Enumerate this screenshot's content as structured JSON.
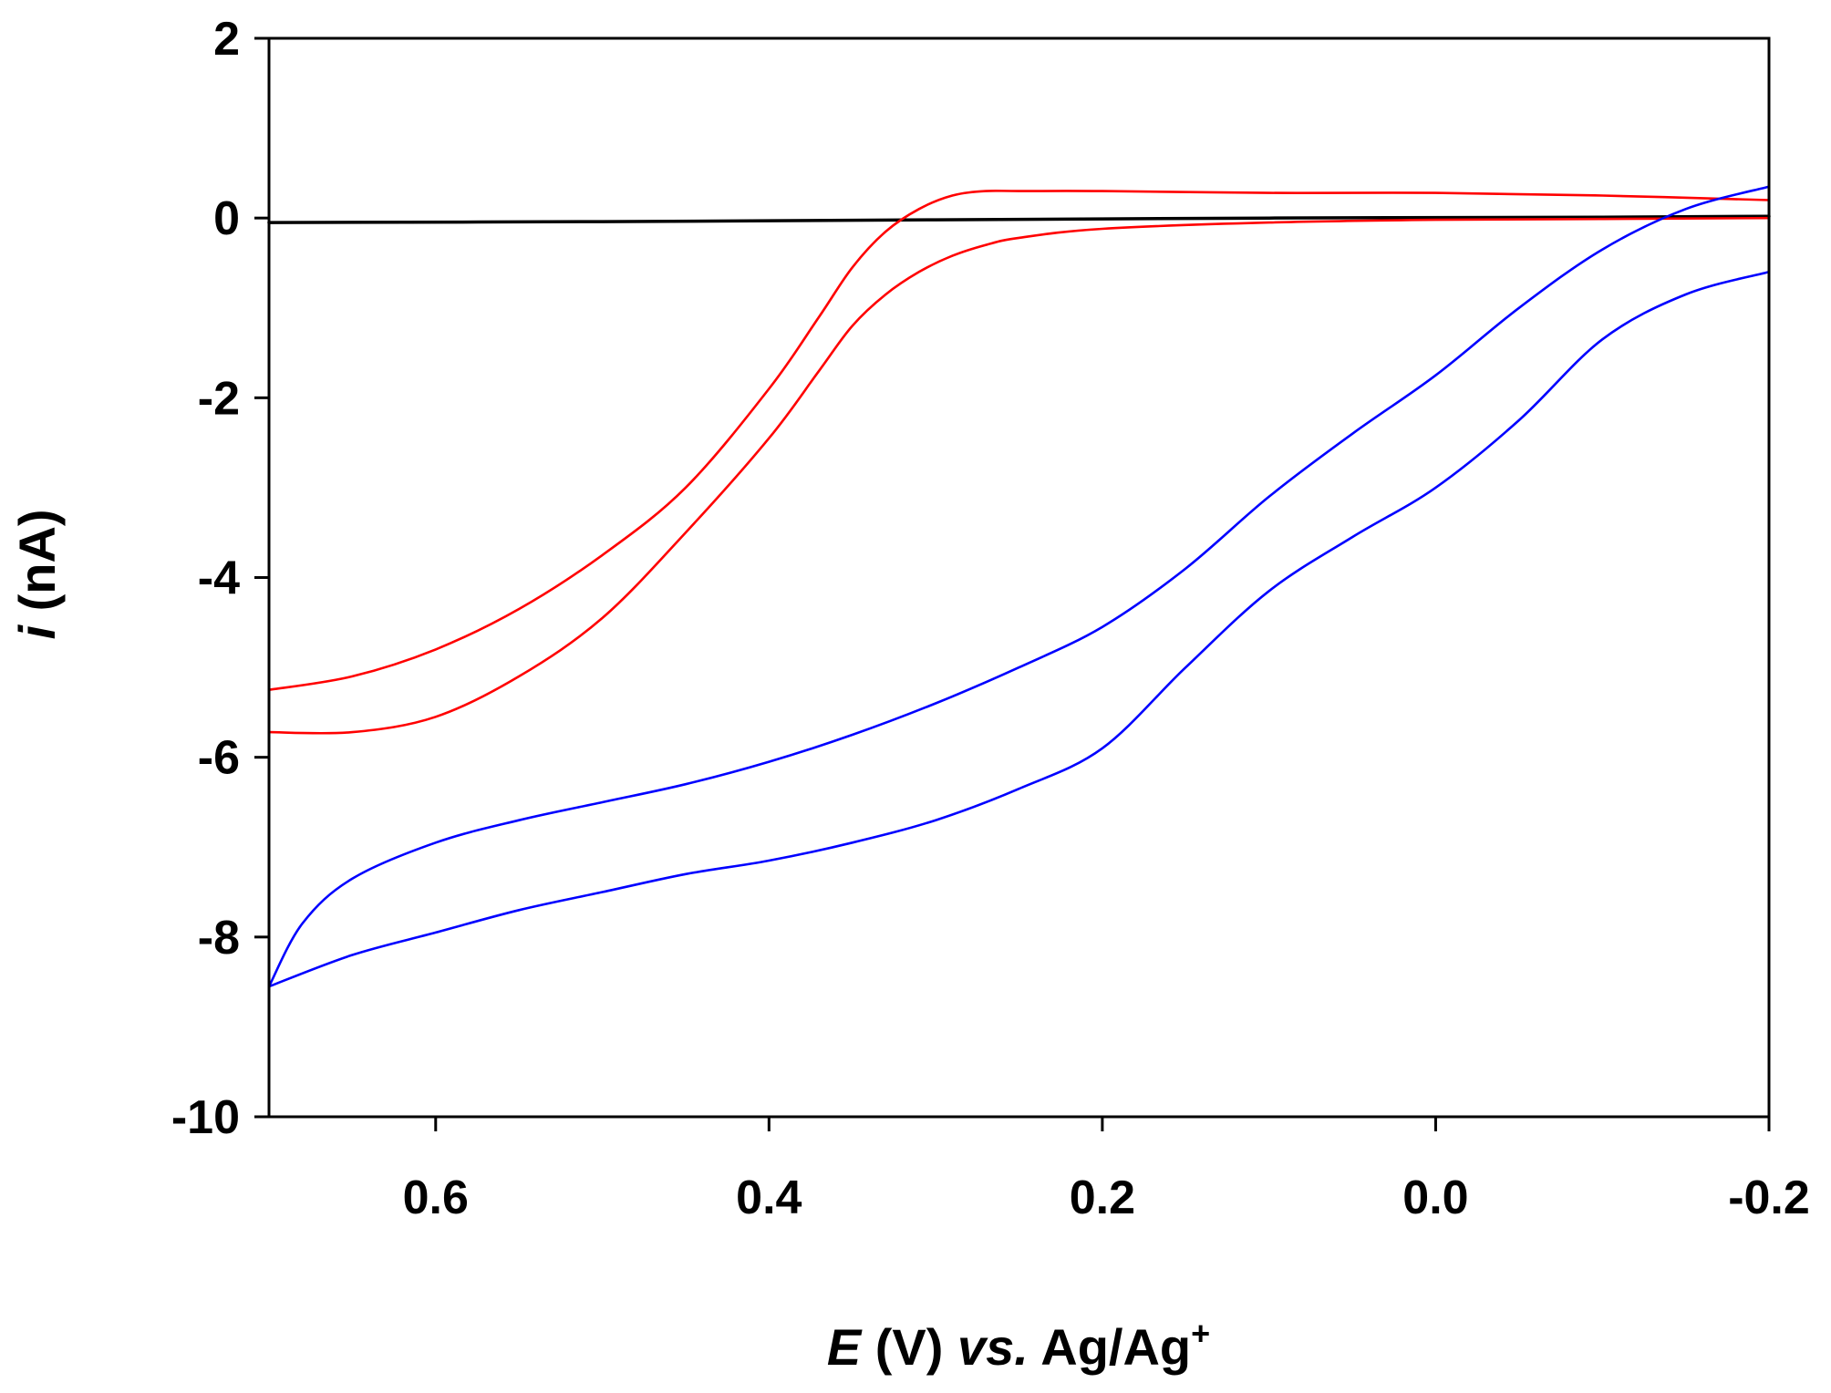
{
  "chart_data": {
    "type": "line",
    "title": "",
    "xlabel": {
      "parts": [
        {
          "text": "E",
          "italic": true
        },
        {
          "text": " (V) ",
          "italic": false
        },
        {
          "text": "vs.",
          "italic": true
        },
        {
          "text": " Ag/Ag",
          "italic": false
        }
      ],
      "superscript": "+"
    },
    "ylabel": {
      "parts": [
        {
          "text": "i",
          "italic": true
        },
        {
          "text": " (nA)",
          "italic": false
        }
      ]
    },
    "xlim": [
      0.7,
      -0.2
    ],
    "ylim": [
      -10,
      2
    ],
    "x_ticks": [
      0.6,
      0.4,
      0.2,
      0.0,
      -0.2
    ],
    "x_tick_labels": [
      "0.6",
      "0.4",
      "0.2",
      "0.0",
      "-0.2"
    ],
    "y_ticks": [
      2,
      0,
      -2,
      -4,
      -6,
      -8,
      -10
    ],
    "y_tick_labels": [
      "2",
      "0",
      "-2",
      "-4",
      "-6",
      "-8",
      "-10"
    ],
    "grid": false,
    "legend": "none",
    "colors": {
      "red": "#ff0000",
      "blue": "#0000ff",
      "black": "#000000"
    },
    "series": [
      {
        "name": "black baseline",
        "color": "#000000",
        "x": [
          0.7,
          0.5,
          0.3,
          0.1,
          -0.1,
          -0.2
        ],
        "y": [
          -0.05,
          -0.04,
          -0.02,
          0.0,
          0.01,
          0.02
        ]
      },
      {
        "name": "red upper branch",
        "color": "#ff0000",
        "x": [
          0.7,
          0.65,
          0.6,
          0.55,
          0.5,
          0.45,
          0.4,
          0.37,
          0.35,
          0.33,
          0.31,
          0.29,
          0.27,
          0.25,
          0.2,
          0.1,
          0.0,
          -0.1,
          -0.2
        ],
        "y": [
          -5.25,
          -5.1,
          -4.8,
          -4.35,
          -3.75,
          -3.0,
          -1.9,
          -1.1,
          -0.55,
          -0.15,
          0.1,
          0.25,
          0.3,
          0.3,
          0.3,
          0.28,
          0.28,
          0.25,
          0.2
        ]
      },
      {
        "name": "red lower branch",
        "color": "#ff0000",
        "x": [
          0.7,
          0.65,
          0.6,
          0.55,
          0.5,
          0.45,
          0.4,
          0.37,
          0.35,
          0.33,
          0.31,
          0.29,
          0.27,
          0.25,
          0.2,
          0.1,
          0.0,
          -0.1,
          -0.2
        ],
        "y": [
          -5.72,
          -5.72,
          -5.55,
          -5.1,
          -4.45,
          -3.5,
          -2.45,
          -1.7,
          -1.2,
          -0.85,
          -0.6,
          -0.42,
          -0.3,
          -0.22,
          -0.12,
          -0.05,
          -0.02,
          -0.01,
          0.0
        ]
      },
      {
        "name": "blue upper branch",
        "color": "#0000ff",
        "x": [
          0.7,
          0.68,
          0.65,
          0.6,
          0.55,
          0.5,
          0.45,
          0.4,
          0.35,
          0.3,
          0.25,
          0.2,
          0.15,
          0.1,
          0.05,
          0.0,
          -0.05,
          -0.1,
          -0.15,
          -0.2
        ],
        "y": [
          -8.55,
          -7.85,
          -7.35,
          -6.95,
          -6.7,
          -6.5,
          -6.3,
          -6.05,
          -5.75,
          -5.4,
          -5.0,
          -4.55,
          -3.9,
          -3.1,
          -2.4,
          -1.75,
          -1.0,
          -0.35,
          0.1,
          0.35
        ]
      },
      {
        "name": "blue lower branch",
        "color": "#0000ff",
        "x": [
          0.7,
          0.65,
          0.6,
          0.55,
          0.5,
          0.45,
          0.4,
          0.35,
          0.3,
          0.25,
          0.2,
          0.15,
          0.1,
          0.05,
          0.0,
          -0.05,
          -0.1,
          -0.15,
          -0.2
        ],
        "y": [
          -8.55,
          -8.2,
          -7.95,
          -7.7,
          -7.5,
          -7.3,
          -7.15,
          -6.95,
          -6.7,
          -6.35,
          -5.9,
          -5.0,
          -4.15,
          -3.55,
          -3.0,
          -2.25,
          -1.35,
          -0.85,
          -0.6
        ]
      }
    ]
  }
}
